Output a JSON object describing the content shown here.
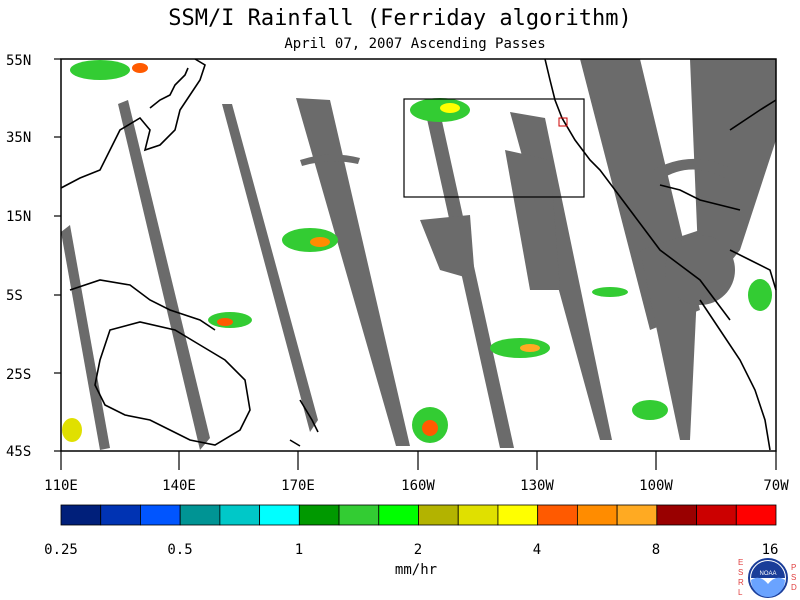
{
  "title": "SSM/I Rainfall (Ferriday algorithm)",
  "subtitle": "April 07, 2007  Ascending Passes",
  "lat_labels": [
    "55N",
    "35N",
    "15N",
    "5S",
    "25S",
    "45S"
  ],
  "lon_labels": [
    "110E",
    "140E",
    "170E",
    "160W",
    "130W",
    "100W",
    "70W"
  ],
  "colorbar": {
    "colors": [
      "#001f7a",
      "#0033b3",
      "#0055ff",
      "#009494",
      "#00c8c8",
      "#00ffff",
      "#009900",
      "#33cc33",
      "#00ff00",
      "#b3b300",
      "#e0e000",
      "#ffff00",
      "#ff5a00",
      "#ff8c00",
      "#ffaa22",
      "#990000",
      "#cc0000",
      "#ff0000"
    ],
    "tick_labels": [
      "0.25",
      "0.5",
      "1",
      "2",
      "4",
      "8",
      "16"
    ],
    "units": "mm/hr"
  },
  "swath_color": "#6b6b6b",
  "logo": {
    "agency": "NOAA",
    "left_letters": [
      "E",
      "S",
      "R",
      "L"
    ],
    "right_letters": [
      "P",
      "S",
      "D"
    ]
  }
}
